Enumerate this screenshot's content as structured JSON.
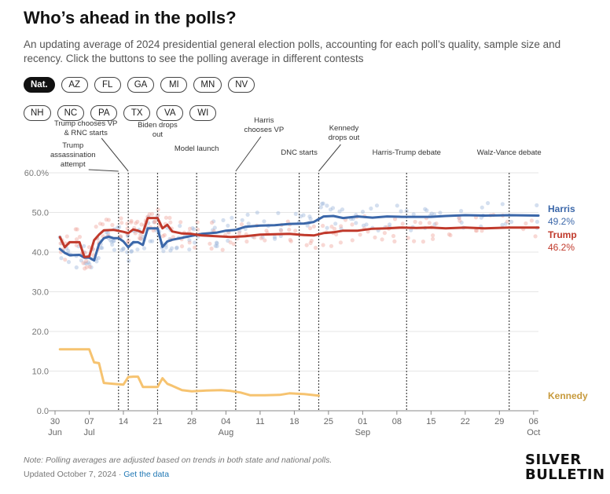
{
  "header": {
    "title": "Who’s ahead in the polls?",
    "subtitle": "An updating average of 2024 presidential general election polls, accounting for each poll’s quality, sample size and recency. Click the buttons to see the polling average in different contests"
  },
  "buttons": {
    "row1": [
      "Nat.",
      "AZ",
      "FL",
      "GA",
      "MI",
      "MN",
      "NV"
    ],
    "row2": [
      "NH",
      "NC",
      "PA",
      "TX",
      "VA",
      "WI"
    ],
    "active": "Nat."
  },
  "chart_data": {
    "type": "line",
    "y_unit": "percent",
    "ylim": [
      0,
      60
    ],
    "yticks": [
      "0.0",
      "10.0",
      "20.0",
      "30.0",
      "40.0",
      "50.0",
      "60.0%"
    ],
    "xlim": [
      "2024-06-30",
      "2024-10-07"
    ],
    "xticks": [
      {
        "date": "2024-06-30",
        "label": "30",
        "sub": "Jun"
      },
      {
        "date": "2024-07-07",
        "label": "07",
        "sub": "Jul"
      },
      {
        "date": "2024-07-14",
        "label": "14",
        "sub": ""
      },
      {
        "date": "2024-07-21",
        "label": "21",
        "sub": ""
      },
      {
        "date": "2024-07-28",
        "label": "28",
        "sub": ""
      },
      {
        "date": "2024-08-04",
        "label": "04",
        "sub": "Aug"
      },
      {
        "date": "2024-08-11",
        "label": "11",
        "sub": ""
      },
      {
        "date": "2024-08-18",
        "label": "18",
        "sub": ""
      },
      {
        "date": "2024-08-25",
        "label": "25",
        "sub": ""
      },
      {
        "date": "2024-09-01",
        "label": "01",
        "sub": "Sep"
      },
      {
        "date": "2024-09-08",
        "label": "08",
        "sub": ""
      },
      {
        "date": "2024-09-15",
        "label": "15",
        "sub": ""
      },
      {
        "date": "2024-09-22",
        "label": "22",
        "sub": ""
      },
      {
        "date": "2024-09-29",
        "label": "29",
        "sub": ""
      },
      {
        "date": "2024-10-06",
        "label": "06",
        "sub": "Oct"
      }
    ],
    "grid": true,
    "series": [
      {
        "name": "Harris",
        "label_value": "49.2%",
        "color": "#3b67a9",
        "dot_color": "#9fb8dc",
        "points": [
          [
            "2024-07-01",
            40.8
          ],
          [
            "2024-07-02",
            39.8
          ],
          [
            "2024-07-03",
            39.2
          ],
          [
            "2024-07-05",
            39.3
          ],
          [
            "2024-07-06",
            38.6
          ],
          [
            "2024-07-07",
            38.6
          ],
          [
            "2024-07-08",
            37.9
          ],
          [
            "2024-07-09",
            42.0
          ],
          [
            "2024-07-10",
            43.5
          ],
          [
            "2024-07-11",
            43.9
          ],
          [
            "2024-07-12",
            43.5
          ],
          [
            "2024-07-13",
            43.5
          ],
          [
            "2024-07-14",
            42.7
          ],
          [
            "2024-07-15",
            41.2
          ],
          [
            "2024-07-16",
            42.5
          ],
          [
            "2024-07-17",
            42.5
          ],
          [
            "2024-07-18",
            41.8
          ],
          [
            "2024-07-19",
            46.0
          ],
          [
            "2024-07-20",
            46.0
          ],
          [
            "2024-07-21",
            46.0
          ],
          [
            "2024-07-22",
            41.3
          ],
          [
            "2024-07-23",
            42.7
          ],
          [
            "2024-07-24",
            43.1
          ],
          [
            "2024-07-26",
            43.6
          ],
          [
            "2024-07-28",
            44.1
          ],
          [
            "2024-07-30",
            44.6
          ],
          [
            "2024-08-02",
            44.9
          ],
          [
            "2024-08-04",
            45.4
          ],
          [
            "2024-08-06",
            45.6
          ],
          [
            "2024-08-08",
            46.4
          ],
          [
            "2024-08-11",
            46.7
          ],
          [
            "2024-08-14",
            46.8
          ],
          [
            "2024-08-17",
            47.1
          ],
          [
            "2024-08-20",
            47.2
          ],
          [
            "2024-08-22",
            47.6
          ],
          [
            "2024-08-24",
            49.0
          ],
          [
            "2024-08-26",
            49.1
          ],
          [
            "2024-08-28",
            48.6
          ],
          [
            "2024-08-31",
            49.0
          ],
          [
            "2024-09-03",
            48.7
          ],
          [
            "2024-09-06",
            49.0
          ],
          [
            "2024-09-09",
            48.9
          ],
          [
            "2024-09-12",
            48.9
          ],
          [
            "2024-09-15",
            48.9
          ],
          [
            "2024-09-18",
            49.1
          ],
          [
            "2024-09-22",
            49.3
          ],
          [
            "2024-09-26",
            49.2
          ],
          [
            "2024-10-01",
            49.3
          ],
          [
            "2024-10-07",
            49.2
          ]
        ]
      },
      {
        "name": "Trump",
        "label_value": "46.2%",
        "color": "#c0392b",
        "dot_color": "#f0a9a0",
        "points": [
          [
            "2024-07-01",
            43.8
          ],
          [
            "2024-07-02",
            41.2
          ],
          [
            "2024-07-03",
            42.5
          ],
          [
            "2024-07-05",
            42.5
          ],
          [
            "2024-07-06",
            38.8
          ],
          [
            "2024-07-07",
            38.9
          ],
          [
            "2024-07-08",
            43.0
          ],
          [
            "2024-07-09",
            44.4
          ],
          [
            "2024-07-10",
            45.5
          ],
          [
            "2024-07-12",
            45.6
          ],
          [
            "2024-07-14",
            45.1
          ],
          [
            "2024-07-15",
            44.8
          ],
          [
            "2024-07-16",
            45.7
          ],
          [
            "2024-07-17",
            45.4
          ],
          [
            "2024-07-18",
            44.9
          ],
          [
            "2024-07-19",
            48.6
          ],
          [
            "2024-07-20",
            48.6
          ],
          [
            "2024-07-21",
            48.6
          ],
          [
            "2024-07-22",
            46.0
          ],
          [
            "2024-07-23",
            46.9
          ],
          [
            "2024-07-24",
            45.2
          ],
          [
            "2024-07-26",
            44.7
          ],
          [
            "2024-07-28",
            44.6
          ],
          [
            "2024-07-30",
            44.2
          ],
          [
            "2024-08-02",
            44.0
          ],
          [
            "2024-08-05",
            43.8
          ],
          [
            "2024-08-08",
            44.0
          ],
          [
            "2024-08-11",
            44.4
          ],
          [
            "2024-08-14",
            44.5
          ],
          [
            "2024-08-17",
            44.6
          ],
          [
            "2024-08-20",
            44.3
          ],
          [
            "2024-08-22",
            44.2
          ],
          [
            "2024-08-24",
            44.8
          ],
          [
            "2024-08-26",
            45.0
          ],
          [
            "2024-08-28",
            45.4
          ],
          [
            "2024-08-31",
            45.4
          ],
          [
            "2024-09-03",
            45.9
          ],
          [
            "2024-09-06",
            46.0
          ],
          [
            "2024-09-09",
            46.2
          ],
          [
            "2024-09-12",
            46.1
          ],
          [
            "2024-09-15",
            46.2
          ],
          [
            "2024-09-18",
            46.0
          ],
          [
            "2024-09-22",
            46.2
          ],
          [
            "2024-09-26",
            46.0
          ],
          [
            "2024-10-01",
            46.2
          ],
          [
            "2024-10-07",
            46.2
          ]
        ]
      },
      {
        "name": "Kennedy",
        "label_value": "",
        "color": "#f6c370",
        "dot_color": "",
        "points": [
          [
            "2024-07-01",
            15.5
          ],
          [
            "2024-07-03",
            15.5
          ],
          [
            "2024-07-05",
            15.5
          ],
          [
            "2024-07-07",
            15.5
          ],
          [
            "2024-07-08",
            12.2
          ],
          [
            "2024-07-09",
            12.0
          ],
          [
            "2024-07-10",
            7.0
          ],
          [
            "2024-07-12",
            6.8
          ],
          [
            "2024-07-14",
            6.6
          ],
          [
            "2024-07-15",
            8.5
          ],
          [
            "2024-07-16",
            8.6
          ],
          [
            "2024-07-17",
            8.6
          ],
          [
            "2024-07-18",
            6.0
          ],
          [
            "2024-07-21",
            6.0
          ],
          [
            "2024-07-22",
            8.2
          ],
          [
            "2024-07-23",
            6.8
          ],
          [
            "2024-07-24",
            6.3
          ],
          [
            "2024-07-26",
            5.2
          ],
          [
            "2024-07-28",
            4.9
          ],
          [
            "2024-07-31",
            5.1
          ],
          [
            "2024-08-03",
            5.2
          ],
          [
            "2024-08-05",
            5.0
          ],
          [
            "2024-08-07",
            4.6
          ],
          [
            "2024-08-09",
            3.9
          ],
          [
            "2024-08-12",
            3.9
          ],
          [
            "2024-08-15",
            4.0
          ],
          [
            "2024-08-17",
            4.4
          ],
          [
            "2024-08-20",
            4.2
          ],
          [
            "2024-08-23",
            3.8
          ]
        ]
      }
    ],
    "events": [
      {
        "date": "2024-07-13",
        "label": "Trump assassination attempt"
      },
      {
        "date": "2024-07-15",
        "label": "Trump chooses VP & RNC starts"
      },
      {
        "date": "2024-07-21",
        "label": "Biden drops out"
      },
      {
        "date": "2024-07-29",
        "label": "Model launch"
      },
      {
        "date": "2024-08-06",
        "label": "Harris chooses VP"
      },
      {
        "date": "2024-08-19",
        "label": "DNC starts"
      },
      {
        "date": "2024-08-23",
        "label": "Kennedy drops out"
      },
      {
        "date": "2024-09-10",
        "label": "Harris-Trump debate"
      },
      {
        "date": "2024-10-01",
        "label": "Walz-Vance debate"
      }
    ]
  },
  "footer": {
    "note": "Note: Polling averages are adjusted based on trends in both state and national polls.",
    "updated": "Updated October 7, 2024 · ",
    "data_link": "Get the data",
    "logo_line1": "SILVER",
    "logo_line2": "BULLETIN"
  }
}
